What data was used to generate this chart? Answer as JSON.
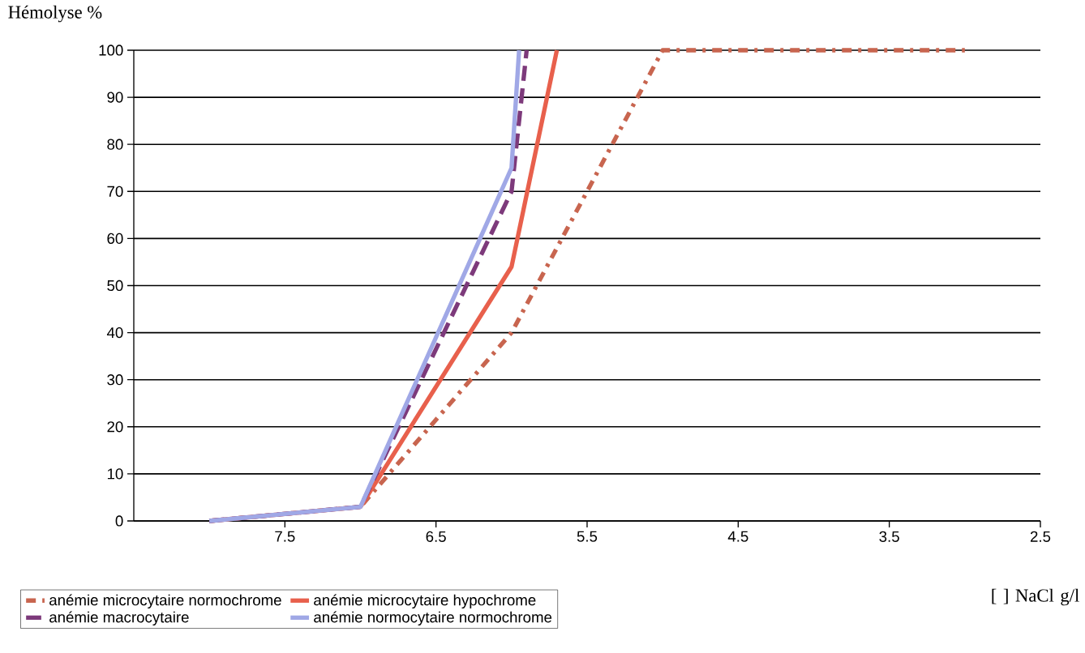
{
  "chart_data": {
    "type": "line",
    "ylabel": "Hémolyse %",
    "xlabel": "[ ] NaCl g/l",
    "xlim": [
      8.5,
      2.5
    ],
    "xticks": [
      7.5,
      6.5,
      5.5,
      4.5,
      3.5,
      2.5
    ],
    "ylim": [
      0,
      100
    ],
    "yticks": [
      0,
      10,
      20,
      30,
      40,
      50,
      60,
      70,
      80,
      90,
      100
    ],
    "grid": "y",
    "legend": "bottom",
    "series": [
      {
        "name": "anémie microcytaire normochrome",
        "color": "#c8654f",
        "line_style": "dashdot",
        "x": [
          8,
          7,
          6,
          5,
          4,
          3
        ],
        "values": [
          0,
          3,
          40,
          100,
          100,
          100
        ]
      },
      {
        "name": "anémie microcytaire hypochrome",
        "color": "#e8604c",
        "line_style": "solid",
        "x": [
          8,
          7,
          6,
          5.7
        ],
        "values": [
          0,
          3,
          54,
          100
        ]
      },
      {
        "name": "anémie macrocytaire",
        "color": "#7d3a7b",
        "line_style": "dashed",
        "x": [
          8,
          7,
          6,
          5.9
        ],
        "values": [
          0,
          3,
          70,
          100
        ]
      },
      {
        "name": "anémie normocytaire normochrome",
        "color": "#a0a8e6",
        "line_style": "solid",
        "x": [
          8,
          7,
          6,
          5.95
        ],
        "values": [
          0,
          3,
          75,
          100
        ]
      }
    ]
  }
}
